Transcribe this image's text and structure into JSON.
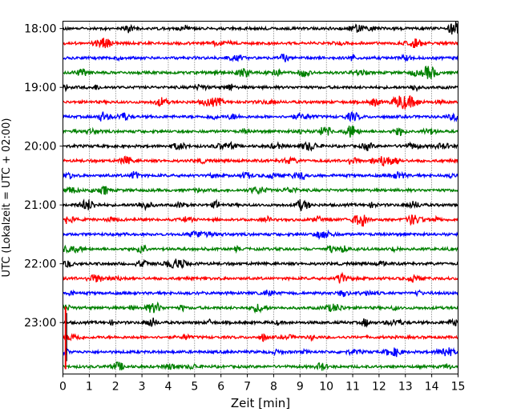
{
  "chart_data": {
    "type": "line",
    "title": "",
    "xlabel": "Zeit  [min]",
    "ylabel": "UTC (Lokalzeit = UTC + 02:00)",
    "xlim": [
      0,
      15
    ],
    "ylim": [
      "17:52:30",
      "23:52:30"
    ],
    "x_ticks": [
      0,
      1,
      2,
      3,
      4,
      5,
      6,
      7,
      8,
      9,
      10,
      11,
      12,
      13,
      14,
      15
    ],
    "y_ticks": [
      "18:00",
      "19:00",
      "20:00",
      "21:00",
      "22:00",
      "23:00"
    ],
    "x_grid": "dotted vertical lines at each minute",
    "trace_interval_minutes": 15,
    "trace_color_cycle": [
      "#000000",
      "#ff0000",
      "#0000ff",
      "#008000"
    ],
    "series": [
      {
        "start": "18:00",
        "color": "#000000"
      },
      {
        "start": "18:15",
        "color": "#ff0000"
      },
      {
        "start": "18:30",
        "color": "#0000ff"
      },
      {
        "start": "18:45",
        "color": "#008000"
      },
      {
        "start": "19:00",
        "color": "#000000"
      },
      {
        "start": "19:15",
        "color": "#ff0000"
      },
      {
        "start": "19:30",
        "color": "#0000ff"
      },
      {
        "start": "19:45",
        "color": "#008000"
      },
      {
        "start": "20:00",
        "color": "#000000"
      },
      {
        "start": "20:15",
        "color": "#ff0000"
      },
      {
        "start": "20:30",
        "color": "#0000ff"
      },
      {
        "start": "20:45",
        "color": "#008000"
      },
      {
        "start": "21:00",
        "color": "#000000"
      },
      {
        "start": "21:15",
        "color": "#ff0000"
      },
      {
        "start": "21:30",
        "color": "#0000ff"
      },
      {
        "start": "21:45",
        "color": "#008000"
      },
      {
        "start": "22:00",
        "color": "#000000"
      },
      {
        "start": "22:15",
        "color": "#ff0000"
      },
      {
        "start": "22:30",
        "color": "#0000ff"
      },
      {
        "start": "22:45",
        "color": "#008000"
      },
      {
        "start": "23:00",
        "color": "#000000"
      },
      {
        "start": "23:15",
        "color": "#ff0000"
      },
      {
        "start": "23:30",
        "color": "#0000ff"
      },
      {
        "start": "23:45",
        "color": "#008000"
      }
    ],
    "events": [
      {
        "start": "23:00",
        "minute": 0.1,
        "amplitude": "large"
      }
    ]
  }
}
